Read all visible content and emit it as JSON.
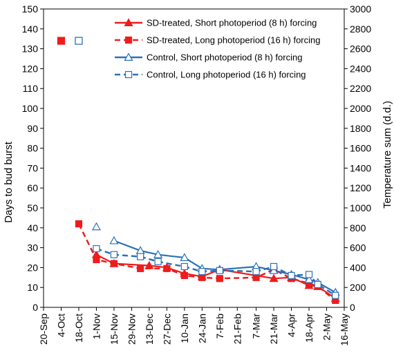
{
  "chart_data": {
    "type": "line",
    "ylabel": "Days to bud burst",
    "y2label": "Temperature sum (d.d.)",
    "ylim": [
      0,
      150
    ],
    "y2lim": [
      0,
      3000
    ],
    "yticks": [
      0,
      10,
      20,
      30,
      40,
      50,
      60,
      70,
      80,
      90,
      100,
      110,
      120,
      130,
      140,
      150
    ],
    "y2ticks": [
      0,
      200,
      400,
      600,
      800,
      1000,
      1200,
      1400,
      1600,
      1800,
      2000,
      2200,
      2400,
      2600,
      2800,
      3000
    ],
    "xlim": [
      "2019-09-20",
      "2020-05-16"
    ],
    "xticks": [
      {
        "date": "2019-09-20",
        "label": "20-Sep"
      },
      {
        "date": "2019-10-04",
        "label": "4-Oct"
      },
      {
        "date": "2019-10-18",
        "label": "18-Oct"
      },
      {
        "date": "2019-11-01",
        "label": "1-Nov"
      },
      {
        "date": "2019-11-15",
        "label": "15-Nov"
      },
      {
        "date": "2019-11-29",
        "label": "29-Nov"
      },
      {
        "date": "2019-12-13",
        "label": "13-Dec"
      },
      {
        "date": "2019-12-27",
        "label": "27-Dec"
      },
      {
        "date": "2020-01-10",
        "label": "10-Jan"
      },
      {
        "date": "2020-01-24",
        "label": "24-Jan"
      },
      {
        "date": "2020-02-07",
        "label": "7-Feb"
      },
      {
        "date": "2020-02-21",
        "label": "21-Feb"
      },
      {
        "date": "2020-03-07",
        "label": "7-Mar"
      },
      {
        "date": "2020-03-21",
        "label": "21-Mar"
      },
      {
        "date": "2020-04-04",
        "label": "4-Apr"
      },
      {
        "date": "2020-04-18",
        "label": "18-Apr"
      },
      {
        "date": "2020-05-02",
        "label": "2-May"
      },
      {
        "date": "2020-05-16",
        "label": "16-May"
      }
    ],
    "legend_position": "top-right",
    "series": [
      {
        "name": "SD-treated, Short photoperiod (8 h) forcing",
        "color": "#ee1c1c",
        "line": "solid",
        "marker": "filled-triangle",
        "points": [
          [
            "2019-11-01",
            26.5
          ],
          [
            "2019-11-15",
            22
          ],
          [
            "2019-12-13",
            21
          ],
          [
            "2019-12-27",
            20
          ],
          [
            "2020-01-10",
            17
          ],
          [
            "2020-01-24",
            15.5
          ],
          [
            "2020-02-07",
            19
          ],
          [
            "2020-03-21",
            14.5
          ],
          [
            "2020-04-04",
            15
          ],
          [
            "2020-04-18",
            11
          ],
          [
            "2020-04-25",
            10.5
          ],
          [
            "2020-05-09",
            4.5
          ]
        ]
      },
      {
        "name": "SD-treated, Long photoperiod (16 h) forcing",
        "color": "#ee1c1c",
        "line": "dashed",
        "marker": "filled-square",
        "points": [
          [
            "2019-10-18",
            42
          ],
          [
            "2019-11-01",
            24
          ],
          [
            "2019-11-15",
            22
          ],
          [
            "2019-12-06",
            19.5
          ],
          [
            "2019-12-27",
            19.5
          ],
          [
            "2020-01-10",
            16
          ],
          [
            "2020-01-24",
            15
          ],
          [
            "2020-02-07",
            14.5
          ],
          [
            "2020-03-07",
            15
          ],
          [
            "2020-03-21",
            19
          ],
          [
            "2020-04-04",
            14.5
          ],
          [
            "2020-04-18",
            12
          ],
          [
            "2020-04-25",
            10.5
          ],
          [
            "2020-05-09",
            3.5
          ]
        ]
      },
      {
        "name": "Control, Short photoperiod (8 h) forcing",
        "color": "#2a70b8",
        "line": "solid",
        "marker": "open-triangle",
        "points": [
          [
            "2019-11-15",
            33.5
          ],
          [
            "2019-12-06",
            28.5
          ],
          [
            "2019-12-20",
            26.5
          ],
          [
            "2020-01-10",
            25
          ],
          [
            "2020-01-24",
            19.5
          ],
          [
            "2020-02-07",
            19
          ],
          [
            "2020-03-07",
            20.5
          ],
          [
            "2020-03-21",
            18.5
          ],
          [
            "2020-04-04",
            16.5
          ],
          [
            "2020-04-18",
            14
          ],
          [
            "2020-04-25",
            12.5
          ],
          [
            "2020-05-09",
            7.5
          ]
        ]
      },
      {
        "name": "Control, Long photoperiod (16 h) forcing",
        "color": "#2a70b8",
        "line": "dashed",
        "marker": "open-square",
        "points": [
          [
            "2019-11-01",
            29.5
          ],
          [
            "2019-11-15",
            26.5
          ],
          [
            "2019-12-06",
            25.5
          ],
          [
            "2019-12-20",
            23
          ],
          [
            "2020-01-10",
            20.5
          ],
          [
            "2020-01-24",
            18
          ],
          [
            "2020-02-07",
            18.5
          ],
          [
            "2020-03-07",
            18
          ],
          [
            "2020-03-21",
            20.5
          ],
          [
            "2020-04-04",
            16
          ],
          [
            "2020-04-18",
            16.5
          ],
          [
            "2020-04-25",
            11.5
          ],
          [
            "2020-05-09",
            6
          ]
        ]
      }
    ],
    "isolated_points": [
      {
        "series_index": 1,
        "date": "2019-10-04",
        "y": 134
      },
      {
        "series_index": 3,
        "date": "2019-10-18",
        "y": 134
      },
      {
        "series_index": 2,
        "date": "2019-11-01",
        "y": 40.5
      }
    ]
  }
}
